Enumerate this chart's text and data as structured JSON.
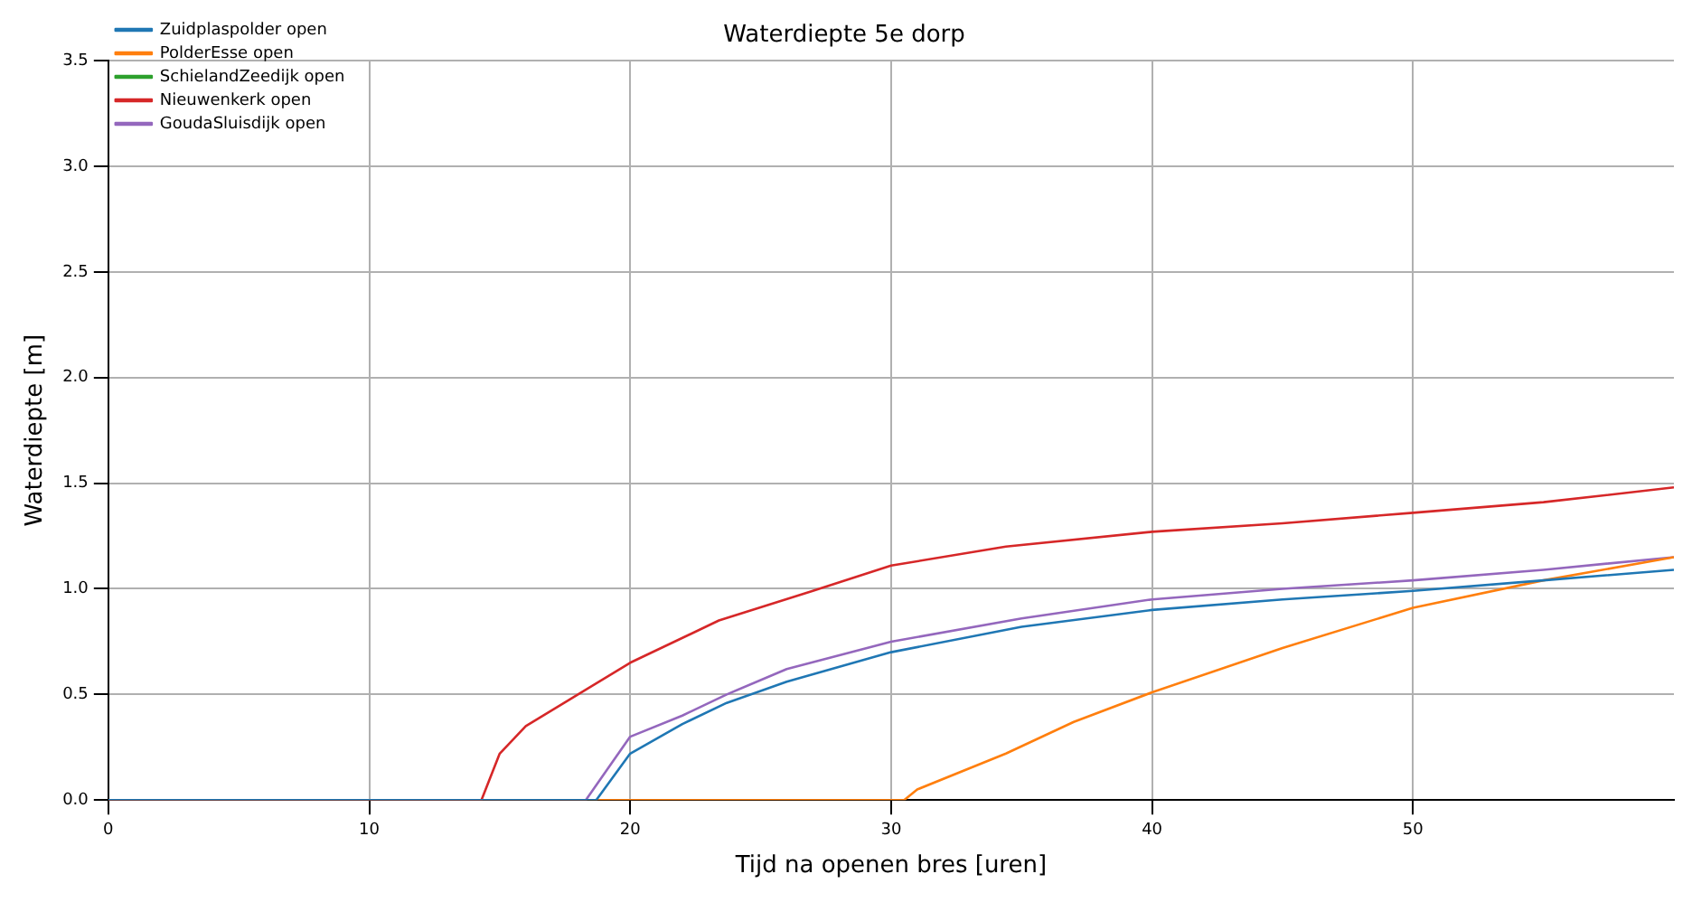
{
  "chart_data": {
    "type": "line",
    "title": "Waterdiepte 5e dorp",
    "xlabel": "Tijd na openen bres [uren]",
    "ylabel": "Waterdiepte [m]",
    "xlim": [
      0,
      60
    ],
    "xticks": [
      0,
      10,
      20,
      30,
      40,
      50
    ],
    "ylim": [
      0,
      3.5
    ],
    "yticks": [
      {
        "value": 0,
        "label": "0.0"
      },
      {
        "value": 0.5,
        "label": "0.5"
      },
      {
        "value": 1,
        "label": "1.0"
      },
      {
        "value": 1.5,
        "label": "1.5"
      },
      {
        "value": 2,
        "label": "2.0"
      },
      {
        "value": 2.5,
        "label": "2.5"
      },
      {
        "value": 3,
        "label": "3.0"
      },
      {
        "value": 3.5,
        "label": "3.5"
      }
    ],
    "grid": true,
    "legend": "top left",
    "marker": "none",
    "line_style": "solid",
    "series": [
      {
        "name": "Zuidplaspolder open",
        "color": "#1f77b4",
        "x": [
          0,
          18.7,
          20,
          22,
          23.7,
          26,
          30,
          35,
          40,
          45,
          50,
          55,
          60
        ],
        "values": [
          0,
          0,
          0.22,
          0.36,
          0.46,
          0.56,
          0.7,
          0.82,
          0.9,
          0.95,
          0.99,
          1.04,
          1.09
        ]
      },
      {
        "name": "PolderEsse open",
        "color": "#ff7f0e",
        "x": [
          0,
          30.5,
          31,
          34.4,
          37,
          40,
          45,
          50,
          55,
          60
        ],
        "values": [
          0,
          0,
          0.05,
          0.22,
          0.37,
          0.51,
          0.72,
          0.91,
          1.04,
          1.15
        ]
      },
      {
        "name": "SchielandZeedijk open",
        "color": "#2ca02c"
      },
      {
        "name": "Nieuwenkerk open",
        "color": "#d62728",
        "x": [
          0,
          14.3,
          15,
          16,
          17.6,
          20,
          23.4,
          27,
          30,
          34.4,
          40,
          45,
          50,
          55,
          60
        ],
        "values": [
          0,
          0,
          0.22,
          0.35,
          0.47,
          0.65,
          0.85,
          0.99,
          1.11,
          1.2,
          1.27,
          1.31,
          1.36,
          1.41,
          1.48
        ]
      },
      {
        "name": "GoudaSluisdijk open",
        "color": "#9467bd",
        "x": [
          0,
          18.3,
          20,
          22,
          23.7,
          26,
          30,
          35,
          40,
          45,
          50,
          55,
          60
        ],
        "values": [
          0,
          0,
          0.3,
          0.4,
          0.5,
          0.62,
          0.75,
          0.86,
          0.95,
          1.0,
          1.04,
          1.09,
          1.15
        ]
      }
    ]
  }
}
